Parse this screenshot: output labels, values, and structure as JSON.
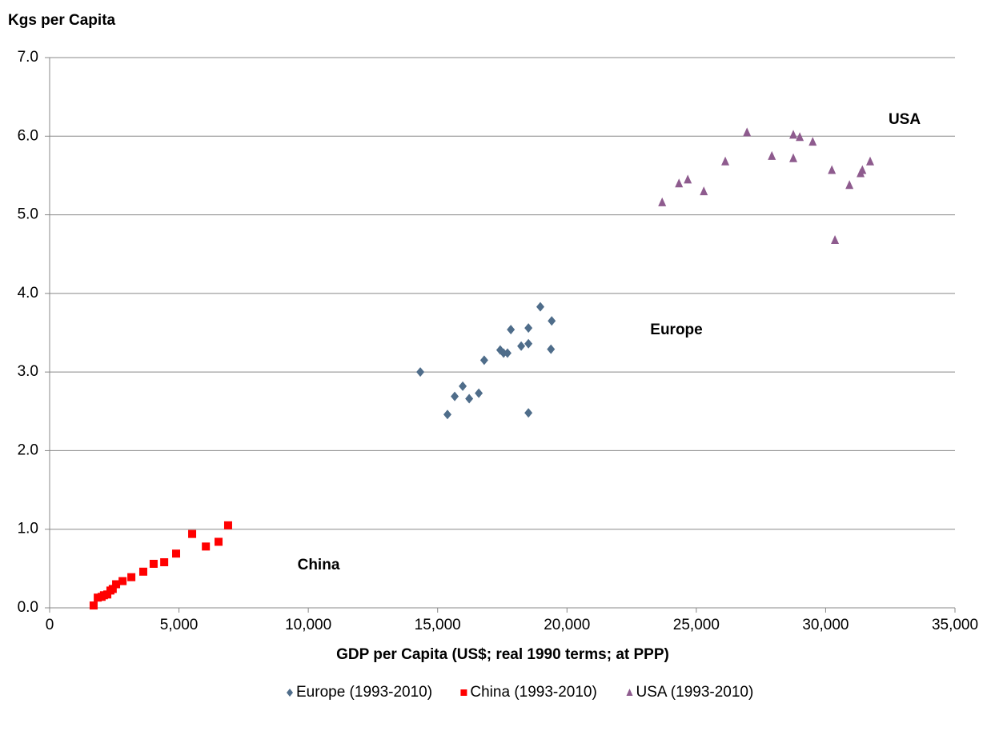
{
  "chart_data": {
    "type": "scatter",
    "y_axis_label": "Kgs per Capita",
    "x_axis_label": "GDP per Capita (US$; real 1990 terms; at PPP)",
    "annotations": [
      "USA",
      "Europe",
      "China"
    ],
    "xlim": [
      0,
      35000
    ],
    "xticks": [
      0,
      {
        "value": 5000,
        "label": "5,000"
      },
      {
        "value": 10000,
        "label": "10,000"
      },
      {
        "value": 15000,
        "label": "15,000"
      },
      {
        "value": 20000,
        "label": "20,000"
      },
      {
        "value": 25000,
        "label": "25,000"
      },
      {
        "value": 30000,
        "label": "30,000"
      },
      {
        "value": 35000,
        "label": "35,000"
      }
    ],
    "ylim": [
      0,
      7
    ],
    "yticks": [
      {
        "value": 0,
        "label": "0.0"
      },
      {
        "value": 1,
        "label": "1.0"
      },
      {
        "value": 2,
        "label": "2.0"
      },
      {
        "value": 3,
        "label": "3.0"
      },
      {
        "value": 4,
        "label": "4.0"
      },
      {
        "value": 5,
        "label": "5.0"
      },
      {
        "value": 6,
        "label": "6.0"
      },
      {
        "value": 7,
        "label": "7.0"
      }
    ],
    "grid": true,
    "legend": "bottom",
    "series": [
      {
        "name": "Europe (1993-2010)",
        "color": "#4f6d8a",
        "marker": "diamond",
        "x": [
          14330,
          15380,
          15660,
          15970,
          16220,
          16590,
          16800,
          17420,
          17550,
          17700,
          17830,
          18230,
          18510,
          18510,
          18510,
          18970,
          19410,
          19380
        ],
        "y": [
          3.0,
          2.46,
          2.69,
          2.82,
          2.66,
          2.73,
          3.15,
          3.28,
          3.24,
          3.24,
          3.54,
          3.33,
          3.36,
          3.56,
          2.48,
          3.83,
          3.65,
          3.29
        ]
      },
      {
        "name": "China (1993-2010)",
        "color": "#ff0000",
        "marker": "square",
        "x": [
          1700,
          1860,
          2010,
          2100,
          2230,
          2350,
          2440,
          2570,
          2820,
          3160,
          3620,
          4020,
          4430,
          4890,
          5510,
          6040,
          6530,
          6900
        ],
        "y": [
          0.03,
          0.13,
          0.14,
          0.16,
          0.17,
          0.22,
          0.24,
          0.3,
          0.34,
          0.39,
          0.46,
          0.56,
          0.58,
          0.69,
          0.94,
          0.78,
          0.84,
          1.05
        ]
      },
      {
        "name": "USA (1993-2010)",
        "color": "#8e5b8e",
        "marker": "triangle",
        "x": [
          23680,
          24330,
          24670,
          25290,
          26120,
          26960,
          27920,
          28750,
          28750,
          29000,
          29500,
          30240,
          30360,
          30920,
          31350,
          31420,
          31720
        ],
        "y": [
          5.16,
          5.4,
          5.45,
          5.3,
          5.68,
          6.05,
          5.75,
          6.02,
          5.72,
          5.99,
          5.93,
          5.57,
          4.68,
          5.38,
          5.53,
          5.57,
          5.68
        ]
      }
    ]
  }
}
